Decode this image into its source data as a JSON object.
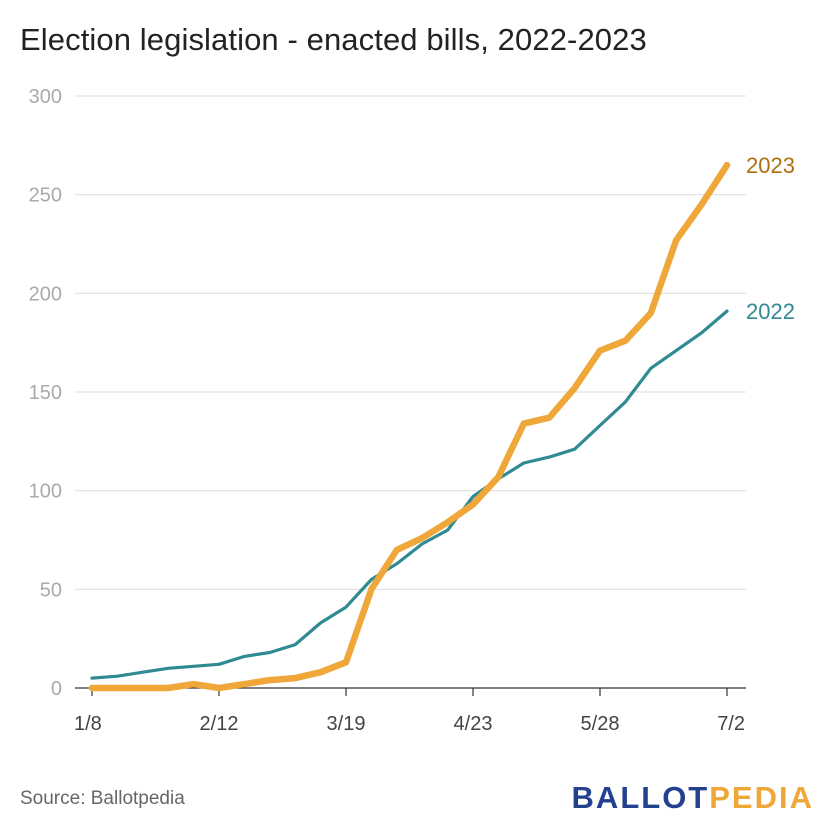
{
  "chart_data": {
    "type": "line",
    "title": "Election legislation - enacted bills, 2022-2023",
    "xlabel": "",
    "ylabel": "",
    "ylim": [
      0,
      300
    ],
    "yticks": [
      0,
      50,
      100,
      150,
      200,
      250,
      300
    ],
    "x_tick_labels": [
      "1/8",
      "2/12",
      "3/19",
      "4/23",
      "5/28",
      "7/2"
    ],
    "x": [
      0,
      7,
      14,
      21,
      28,
      35,
      42,
      49,
      56,
      63,
      70,
      77,
      84,
      91,
      98,
      105,
      112,
      119,
      126,
      133,
      140,
      147,
      154,
      161,
      168,
      175
    ],
    "grid": true,
    "legend": "line-end labels",
    "series": [
      {
        "name": "2023",
        "color": "#f0a73a",
        "values": [
          0,
          0,
          0,
          0,
          2,
          0,
          2,
          4,
          5,
          8,
          13,
          50,
          70,
          76,
          84,
          93,
          107,
          134,
          137,
          152,
          171,
          176,
          190,
          227,
          245,
          265
        ]
      },
      {
        "name": "2022",
        "color": "#2f8a91",
        "values": [
          5,
          6,
          8,
          10,
          11,
          12,
          16,
          18,
          22,
          33,
          41,
          55,
          63,
          73,
          80,
          97,
          106,
          114,
          117,
          121,
          133,
          145,
          162,
          171,
          180,
          191
        ]
      }
    ]
  },
  "footer": {
    "source": "Source: Ballotpedia",
    "logo_a": "BALLOT",
    "logo_b": "PEDIA"
  }
}
